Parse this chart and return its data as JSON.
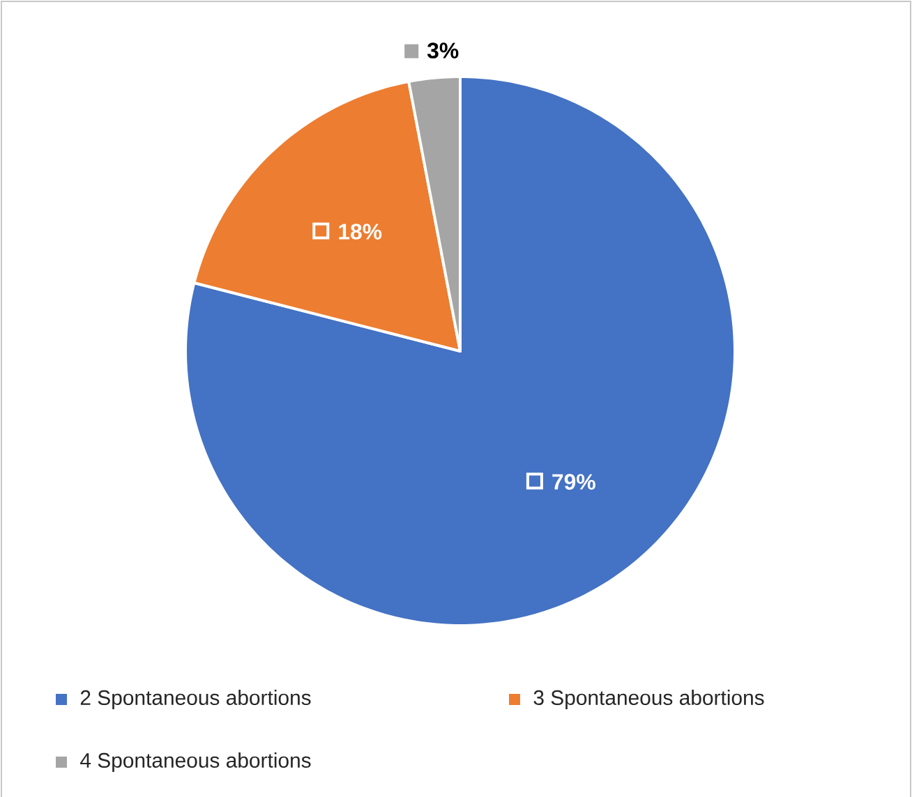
{
  "chart_data": {
    "type": "pie",
    "categories": [
      "2 Spontaneous abortions",
      "3 Spontaneous abortions",
      "4 Spontaneous abortions"
    ],
    "values": [
      79,
      18,
      3
    ],
    "colors": [
      "#4472c4",
      "#ed7d31",
      "#a5a5a5"
    ],
    "value_labels": [
      "79%",
      "18%",
      "3%"
    ],
    "legend": "bottom"
  }
}
